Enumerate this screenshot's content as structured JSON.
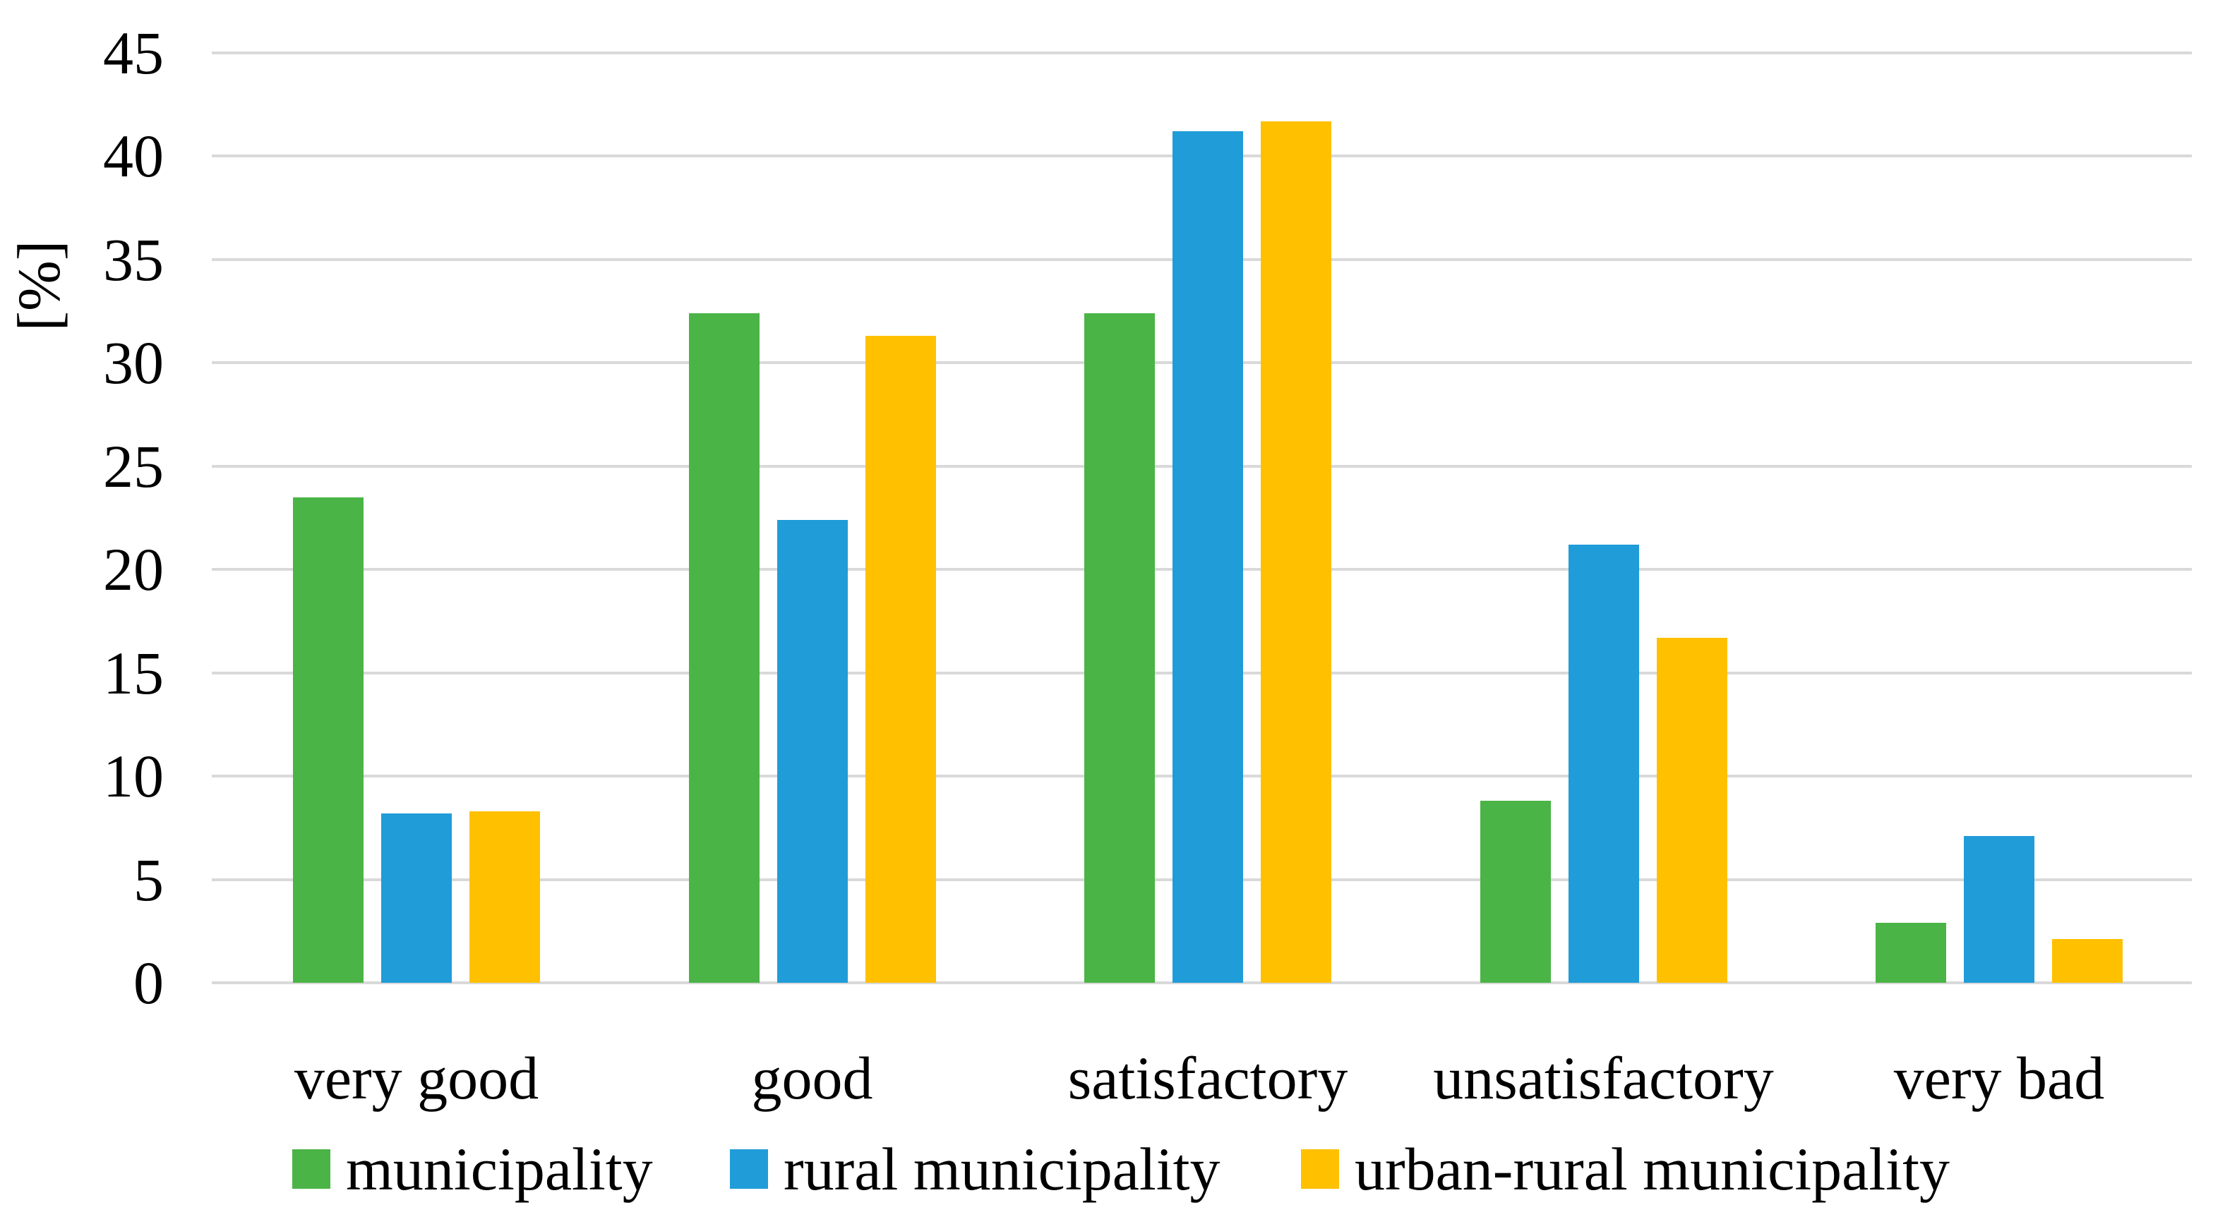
{
  "figure": {
    "ylabel": "[%]"
  },
  "chart_data": {
    "type": "bar",
    "title": "",
    "xlabel": "",
    "ylabel": "[%]",
    "ylim": [
      0,
      45
    ],
    "ytick_step": 5,
    "yticks": [
      45,
      40,
      35,
      30,
      25,
      20,
      15,
      10,
      5,
      0
    ],
    "grid": true,
    "legend_position": "bottom",
    "categories": [
      "very good",
      "good",
      "satisfactory",
      "unsatisfactory",
      "very bad"
    ],
    "series": [
      {
        "name": "municipality",
        "color": "#4BB446",
        "values": [
          23.5,
          32.4,
          32.4,
          8.8,
          2.9
        ]
      },
      {
        "name": "rural municipality",
        "color": "#209CD8",
        "values": [
          8.2,
          22.4,
          41.2,
          21.2,
          7.1
        ]
      },
      {
        "name": "urban-rural municipality",
        "color": "#FFC000",
        "values": [
          8.3,
          31.3,
          41.7,
          16.7,
          2.1
        ]
      }
    ],
    "colors": {
      "gridline": "#D9D9D9",
      "text": "#000000",
      "background": "#FFFFFF"
    }
  }
}
